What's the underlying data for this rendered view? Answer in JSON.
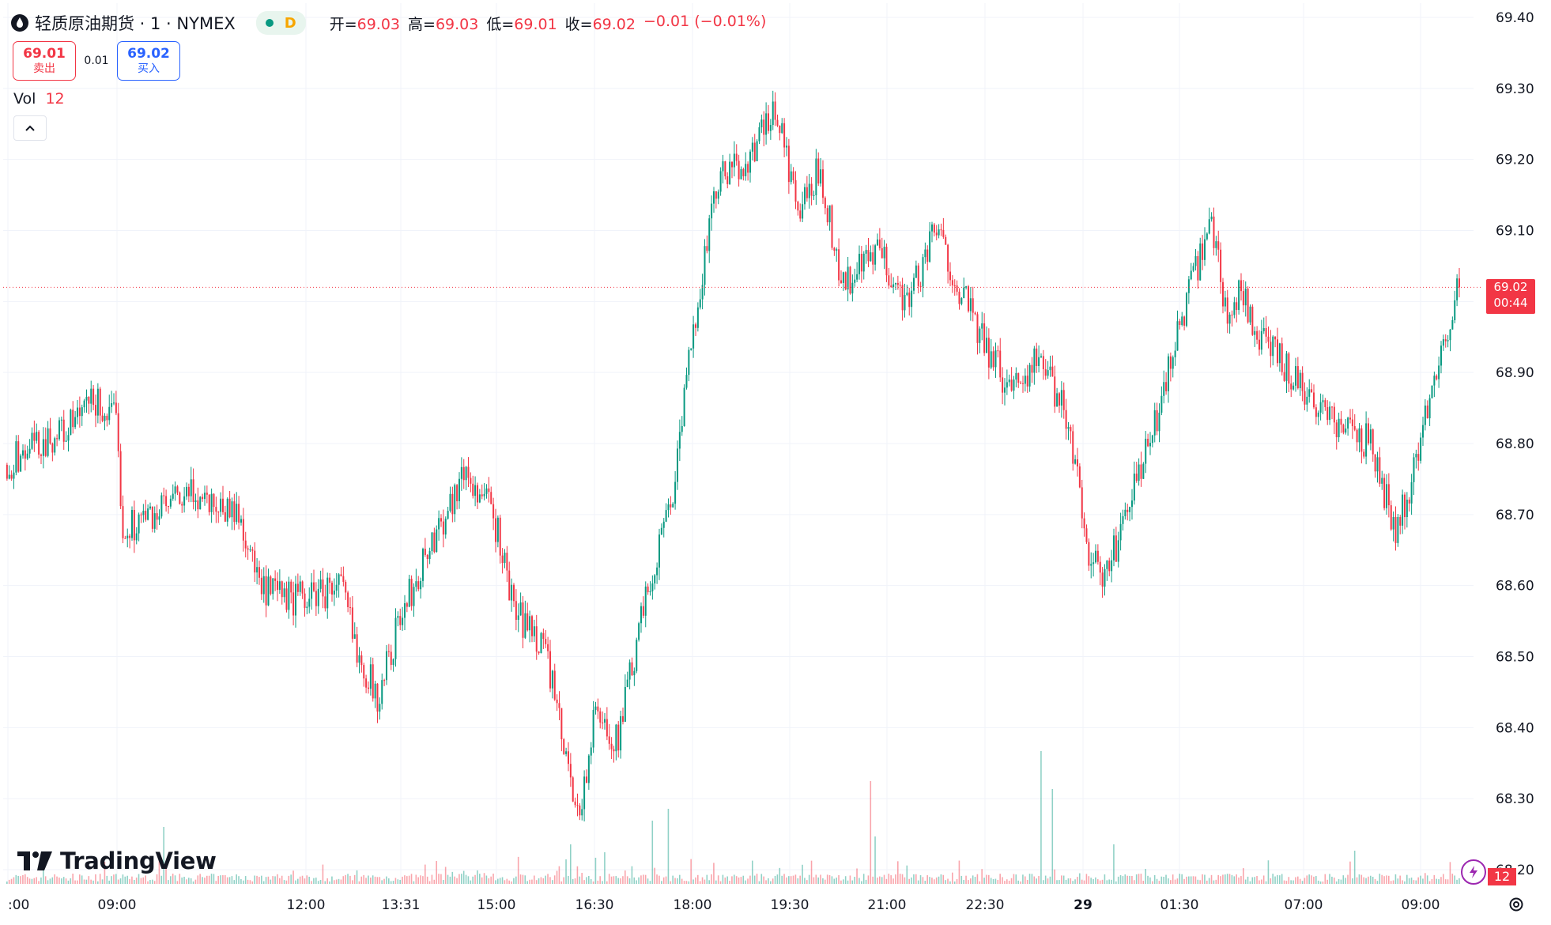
{
  "header": {
    "symbol": "轻质原油期货 · 1 · NYMEX",
    "status_badge": "D",
    "ohlc": [
      {
        "label": "开=",
        "value": "69.03"
      },
      {
        "label": "高=",
        "value": "69.03"
      },
      {
        "label": "低=",
        "value": "69.01"
      },
      {
        "label": "收=",
        "value": "69.02"
      }
    ],
    "change": "−0.01 (−0.01%)"
  },
  "trade": {
    "sell_price": "69.01",
    "sell_label": "卖出",
    "spread": "0.01",
    "buy_price": "69.02",
    "buy_label": "买入"
  },
  "volume_legend": {
    "label": "Vol",
    "value": "12"
  },
  "last_price_tag": {
    "price": "69.02",
    "countdown": "00:44"
  },
  "volume_tag": "12",
  "logo_text": "TradingView",
  "colors": {
    "up": "#089981",
    "down": "#f23645",
    "grid": "#f0f3fa",
    "text": "#131722"
  },
  "chart_data": {
    "type": "candlestick",
    "y_axis": {
      "ticks": [
        "69.40",
        "69.30",
        "69.20",
        "69.10",
        "69.00",
        "68.90",
        "68.80",
        "68.70",
        "68.60",
        "68.50",
        "68.40",
        "68.30",
        "68.20"
      ],
      "range": [
        68.18,
        69.42
      ]
    },
    "x_axis": {
      "ticks": [
        ":00",
        "09:00",
        "12:00",
        "13:31",
        "15:00",
        "16:30",
        "18:00",
        "19:30",
        "21:00",
        "22:30",
        "29",
        "01:30",
        "07:00",
        "09:00"
      ]
    },
    "last_price": 69.02,
    "price_path": [
      {
        "t": 0.0,
        "p": 68.77
      },
      {
        "t": 0.02,
        "p": 68.8
      },
      {
        "t": 0.042,
        "p": 68.82
      },
      {
        "t": 0.06,
        "p": 68.86
      },
      {
        "t": 0.075,
        "p": 68.83
      },
      {
        "t": 0.08,
        "p": 68.68
      },
      {
        "t": 0.1,
        "p": 68.7
      },
      {
        "t": 0.13,
        "p": 68.73
      },
      {
        "t": 0.16,
        "p": 68.7
      },
      {
        "t": 0.175,
        "p": 68.59
      },
      {
        "t": 0.2,
        "p": 68.58
      },
      {
        "t": 0.23,
        "p": 68.6
      },
      {
        "t": 0.24,
        "p": 68.52
      },
      {
        "t": 0.255,
        "p": 68.44
      },
      {
        "t": 0.27,
        "p": 68.55
      },
      {
        "t": 0.29,
        "p": 68.65
      },
      {
        "t": 0.315,
        "p": 68.76
      },
      {
        "t": 0.335,
        "p": 68.7
      },
      {
        "t": 0.35,
        "p": 68.56
      },
      {
        "t": 0.37,
        "p": 68.52
      },
      {
        "t": 0.385,
        "p": 68.35
      },
      {
        "t": 0.395,
        "p": 68.28
      },
      {
        "t": 0.405,
        "p": 68.42
      },
      {
        "t": 0.42,
        "p": 68.38
      },
      {
        "t": 0.44,
        "p": 68.58
      },
      {
        "t": 0.46,
        "p": 68.75
      },
      {
        "t": 0.475,
        "p": 69.0
      },
      {
        "t": 0.49,
        "p": 69.17
      },
      {
        "t": 0.51,
        "p": 69.2
      },
      {
        "t": 0.53,
        "p": 69.27
      },
      {
        "t": 0.545,
        "p": 69.12
      },
      {
        "t": 0.56,
        "p": 69.19
      },
      {
        "t": 0.575,
        "p": 69.02
      },
      {
        "t": 0.6,
        "p": 69.07
      },
      {
        "t": 0.62,
        "p": 69.0
      },
      {
        "t": 0.64,
        "p": 69.1
      },
      {
        "t": 0.67,
        "p": 68.95
      },
      {
        "t": 0.69,
        "p": 68.88
      },
      {
        "t": 0.71,
        "p": 68.92
      },
      {
        "t": 0.73,
        "p": 68.84
      },
      {
        "t": 0.745,
        "p": 68.65
      },
      {
        "t": 0.755,
        "p": 68.6
      },
      {
        "t": 0.77,
        "p": 68.7
      },
      {
        "t": 0.79,
        "p": 68.82
      },
      {
        "t": 0.805,
        "p": 68.95
      },
      {
        "t": 0.82,
        "p": 69.05
      },
      {
        "t": 0.83,
        "p": 69.11
      },
      {
        "t": 0.84,
        "p": 68.98
      },
      {
        "t": 0.85,
        "p": 69.02
      },
      {
        "t": 0.86,
        "p": 68.95
      },
      {
        "t": 0.88,
        "p": 68.91
      },
      {
        "t": 0.9,
        "p": 68.86
      },
      {
        "t": 0.92,
        "p": 68.82
      },
      {
        "t": 0.94,
        "p": 68.8
      },
      {
        "t": 0.955,
        "p": 68.68
      },
      {
        "t": 0.965,
        "p": 68.72
      },
      {
        "t": 0.98,
        "p": 68.88
      },
      {
        "t": 1.0,
        "p": 69.02
      }
    ]
  }
}
